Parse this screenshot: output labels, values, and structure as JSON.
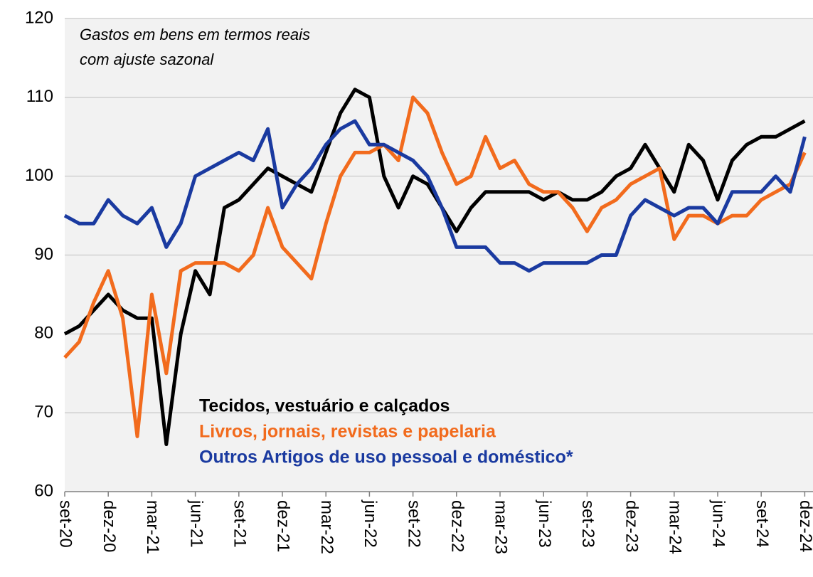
{
  "chart_data": {
    "type": "line",
    "annotation": [
      "Gastos em bens em termos reais",
      "com ajuste sazonal"
    ],
    "categories": [
      "set-20",
      null,
      null,
      "dez-20",
      null,
      null,
      "mar-21",
      null,
      null,
      "jun-21",
      null,
      null,
      "set-21",
      null,
      null,
      "dez-21",
      null,
      null,
      "mar-22",
      null,
      null,
      "jun-22",
      null,
      null,
      "set-22",
      null,
      null,
      "dez-22",
      null,
      null,
      "mar-23",
      null,
      null,
      "jun-23",
      null,
      null,
      "set-23",
      null,
      null,
      "dez-23",
      null,
      null,
      "mar-24",
      null,
      null,
      "jun-24",
      null,
      null,
      "set-24",
      null,
      null,
      "dez-24"
    ],
    "series": [
      {
        "name": "Tecidos, vestuário e calçados",
        "color": "#000000",
        "values": [
          80,
          81,
          83,
          85,
          83,
          82,
          82,
          66,
          80,
          88,
          85,
          96,
          97,
          99,
          101,
          100,
          99,
          98,
          103,
          108,
          111,
          110,
          100,
          96,
          100,
          99,
          96,
          93,
          96,
          98,
          98,
          98,
          98,
          97,
          98,
          97,
          97,
          98,
          100,
          101,
          104,
          101,
          98,
          104,
          102,
          97,
          102,
          104,
          105,
          105,
          106,
          107
        ]
      },
      {
        "name": "Livros, jornais, revistas e papelaria",
        "color": "#f26b1d",
        "values": [
          77,
          79,
          84,
          88,
          82,
          67,
          85,
          75,
          88,
          89,
          89,
          89,
          88,
          90,
          96,
          91,
          89,
          87,
          94,
          100,
          103,
          103,
          104,
          102,
          110,
          108,
          103,
          99,
          100,
          105,
          101,
          102,
          99,
          98,
          98,
          96,
          93,
          96,
          97,
          99,
          100,
          101,
          92,
          95,
          95,
          94,
          95,
          95,
          97,
          98,
          99,
          103
        ]
      },
      {
        "name": "Outros Artigos de uso pessoal e doméstico*",
        "color": "#1a3aa0",
        "values": [
          95,
          94,
          94,
          97,
          95,
          94,
          96,
          91,
          94,
          100,
          101,
          102,
          103,
          102,
          106,
          96,
          99,
          101,
          104,
          106,
          107,
          104,
          104,
          103,
          102,
          100,
          96,
          91,
          91,
          91,
          89,
          89,
          88,
          89,
          89,
          89,
          89,
          90,
          90,
          95,
          97,
          96,
          95,
          96,
          96,
          94,
          98,
          98,
          98,
          100,
          98,
          105
        ]
      }
    ],
    "ylim": [
      60,
      120
    ],
    "yticks": [
      60,
      70,
      80,
      90,
      100,
      110,
      120
    ],
    "grid": true
  }
}
